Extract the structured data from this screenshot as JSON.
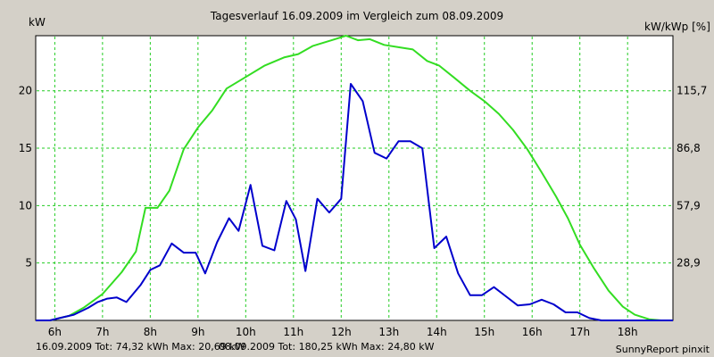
{
  "chart_data": {
    "type": "line",
    "title": "Tagesverlauf 16.09.2009 im Vergleich zum 08.09.2009",
    "ylabel_left": "kW",
    "ylabel_right": "kW/kWp [%]",
    "x_ticks": [
      "6h",
      "7h",
      "8h",
      "9h",
      "10h",
      "11h",
      "12h",
      "13h",
      "14h",
      "15h",
      "16h",
      "17h",
      "18h"
    ],
    "xlim": [
      5.6,
      18.95
    ],
    "ylim": [
      0,
      24.8
    ],
    "y_ticks_left": [
      "5",
      "10",
      "15",
      "20"
    ],
    "y_ticks_right": [
      "28,9",
      "57,9",
      "86,8",
      "115,7"
    ],
    "grid": true,
    "series": [
      {
        "name": "16.09.2009",
        "color": "#0000cc",
        "points": [
          [
            5.6,
            0
          ],
          [
            5.9,
            0
          ],
          [
            6.1,
            0.2
          ],
          [
            6.4,
            0.5
          ],
          [
            6.7,
            1.1
          ],
          [
            6.9,
            1.6
          ],
          [
            7.1,
            1.9
          ],
          [
            7.3,
            2.0
          ],
          [
            7.5,
            1.6
          ],
          [
            7.8,
            3.1
          ],
          [
            8.0,
            4.4
          ],
          [
            8.2,
            4.8
          ],
          [
            8.45,
            6.7
          ],
          [
            8.7,
            5.9
          ],
          [
            8.95,
            5.9
          ],
          [
            9.15,
            4.1
          ],
          [
            9.4,
            6.8
          ],
          [
            9.65,
            8.9
          ],
          [
            9.85,
            7.8
          ],
          [
            10.1,
            11.8
          ],
          [
            10.35,
            6.5
          ],
          [
            10.6,
            6.1
          ],
          [
            10.85,
            10.4
          ],
          [
            11.05,
            8.8
          ],
          [
            11.25,
            4.3
          ],
          [
            11.5,
            10.6
          ],
          [
            11.75,
            9.4
          ],
          [
            12.0,
            10.6
          ],
          [
            12.2,
            20.6
          ],
          [
            12.45,
            19.1
          ],
          [
            12.7,
            14.6
          ],
          [
            12.95,
            14.1
          ],
          [
            13.2,
            15.6
          ],
          [
            13.45,
            15.6
          ],
          [
            13.7,
            15.0
          ],
          [
            13.95,
            6.3
          ],
          [
            14.2,
            7.3
          ],
          [
            14.45,
            4.1
          ],
          [
            14.7,
            2.2
          ],
          [
            14.95,
            2.2
          ],
          [
            15.2,
            2.9
          ],
          [
            15.45,
            2.1
          ],
          [
            15.7,
            1.3
          ],
          [
            15.95,
            1.4
          ],
          [
            16.2,
            1.8
          ],
          [
            16.45,
            1.4
          ],
          [
            16.7,
            0.7
          ],
          [
            16.95,
            0.7
          ],
          [
            17.2,
            0.2
          ],
          [
            17.45,
            0.0
          ],
          [
            17.7,
            0
          ],
          [
            18.95,
            0
          ]
        ]
      },
      {
        "name": "08.09.2009",
        "color": "#33dd22",
        "points": [
          [
            5.6,
            0
          ],
          [
            5.9,
            0
          ],
          [
            6.3,
            0.4
          ],
          [
            6.6,
            1.1
          ],
          [
            7.0,
            2.3
          ],
          [
            7.4,
            4.2
          ],
          [
            7.7,
            6.0
          ],
          [
            7.9,
            9.8
          ],
          [
            8.15,
            9.8
          ],
          [
            8.4,
            11.3
          ],
          [
            8.7,
            14.9
          ],
          [
            9.0,
            16.8
          ],
          [
            9.3,
            18.3
          ],
          [
            9.6,
            20.2
          ],
          [
            10.0,
            21.2
          ],
          [
            10.4,
            22.2
          ],
          [
            10.8,
            22.9
          ],
          [
            11.1,
            23.2
          ],
          [
            11.4,
            23.9
          ],
          [
            11.8,
            24.4
          ],
          [
            12.1,
            24.8
          ],
          [
            12.35,
            24.4
          ],
          [
            12.6,
            24.5
          ],
          [
            12.9,
            24.0
          ],
          [
            13.2,
            23.8
          ],
          [
            13.5,
            23.6
          ],
          [
            13.8,
            22.6
          ],
          [
            14.05,
            22.2
          ],
          [
            14.35,
            21.2
          ],
          [
            14.7,
            20.0
          ],
          [
            15.0,
            19.1
          ],
          [
            15.3,
            18.0
          ],
          [
            15.6,
            16.6
          ],
          [
            15.9,
            14.9
          ],
          [
            16.2,
            12.9
          ],
          [
            16.5,
            10.8
          ],
          [
            16.75,
            8.9
          ],
          [
            17.0,
            6.6
          ],
          [
            17.3,
            4.5
          ],
          [
            17.6,
            2.6
          ],
          [
            17.9,
            1.2
          ],
          [
            18.15,
            0.5
          ],
          [
            18.45,
            0.1
          ],
          [
            18.7,
            0
          ],
          [
            18.95,
            0
          ]
        ]
      }
    ],
    "footer_left_1": "16.09.2009 Tot: 74,32 kWh Max: 20,69 kW",
    "footer_left_2": "08.09.2009 Tot: 180,25 kWh Max: 24,80 kW",
    "footer_right": "SunnyReport pinxit"
  }
}
